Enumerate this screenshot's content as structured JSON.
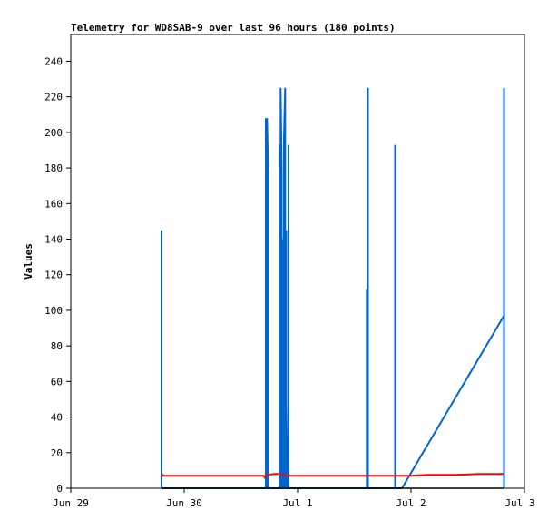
{
  "chart_data": {
    "type": "line",
    "title": "Telemetry for WD8SAB-9 over last 96 hours (180 points)",
    "xlabel": "",
    "ylabel": "Values",
    "x_range": [
      "Jun 29",
      "Jul 3"
    ],
    "ylim": [
      0,
      255
    ],
    "y_ticks": [
      0,
      20,
      40,
      60,
      80,
      100,
      120,
      140,
      160,
      180,
      200,
      220,
      240
    ],
    "x_ticks": [
      {
        "label": "Jun 29",
        "day": 0
      },
      {
        "label": "Jun 30",
        "day": 1
      },
      {
        "label": "Jul 1",
        "day": 2
      },
      {
        "label": "Jul 2",
        "day": 3
      },
      {
        "label": "Jul 3",
        "day": 4
      }
    ],
    "grid": false,
    "legend": "none",
    "series": [
      {
        "color": "#0066cc",
        "points": [
          [
            0.8,
            0
          ],
          [
            0.8,
            145
          ],
          [
            0.8,
            0
          ],
          [
            1.72,
            0
          ],
          [
            1.72,
            208
          ],
          [
            1.72,
            0
          ],
          [
            1.73,
            0
          ],
          [
            1.73,
            208
          ],
          [
            1.74,
            177
          ],
          [
            1.74,
            0
          ],
          [
            1.84,
            0
          ],
          [
            1.84,
            193
          ],
          [
            1.85,
            0
          ],
          [
            1.85,
            225
          ],
          [
            1.86,
            177
          ],
          [
            1.86,
            0
          ],
          [
            1.87,
            0
          ],
          [
            1.87,
            140
          ],
          [
            1.88,
            85
          ],
          [
            1.88,
            0
          ],
          [
            1.88,
            197
          ],
          [
            1.89,
            225
          ],
          [
            1.89,
            0
          ],
          [
            1.9,
            0
          ],
          [
            1.9,
            145
          ],
          [
            1.9,
            48
          ],
          [
            1.91,
            0
          ],
          [
            1.92,
            0
          ],
          [
            1.92,
            193
          ],
          [
            1.92,
            0
          ],
          [
            2.61,
            0
          ],
          [
            2.61,
            112
          ],
          [
            2.61,
            0
          ],
          [
            2.62,
            0
          ],
          [
            2.62,
            225
          ],
          [
            2.62,
            0
          ],
          [
            2.86,
            0
          ],
          [
            2.86,
            193
          ],
          [
            2.86,
            0
          ],
          [
            2.92,
            0
          ],
          [
            3.82,
            97
          ],
          [
            3.82,
            48
          ],
          [
            3.82,
            225
          ],
          [
            3.82,
            0
          ]
        ]
      },
      {
        "color": "#ff0000",
        "points": [
          [
            0.8,
            8.5
          ],
          [
            0.81,
            7
          ],
          [
            1.0,
            7
          ],
          [
            1.5,
            7
          ],
          [
            1.7,
            7
          ],
          [
            1.71,
            6
          ],
          [
            1.72,
            7.5
          ],
          [
            1.8,
            8
          ],
          [
            1.85,
            8
          ],
          [
            1.9,
            7
          ],
          [
            2.2,
            7
          ],
          [
            2.6,
            7
          ],
          [
            2.85,
            7
          ],
          [
            2.9,
            7
          ],
          [
            3.0,
            7
          ],
          [
            3.15,
            7.5
          ],
          [
            3.4,
            7.5
          ],
          [
            3.6,
            8
          ],
          [
            3.82,
            8
          ]
        ]
      },
      {
        "color": "#000000",
        "points": [
          [
            0.8,
            0
          ],
          [
            3.82,
            0
          ]
        ]
      }
    ]
  }
}
